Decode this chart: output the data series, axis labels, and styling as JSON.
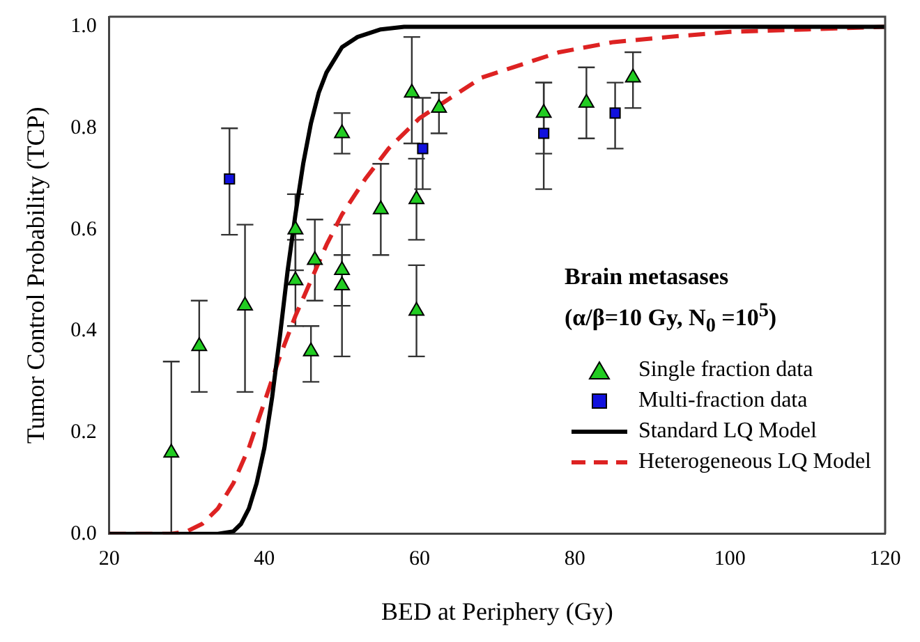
{
  "chart_data": {
    "type": "scatter",
    "xlabel": "BED at Periphery (Gy)",
    "ylabel": "Tumor Control Probability (TCP)",
    "xlim": [
      20,
      120
    ],
    "xticks": [
      20,
      40,
      60,
      80,
      100,
      120
    ],
    "ylim": [
      0,
      1.02
    ],
    "yticks": [
      {
        "value": 0,
        "label": "0.0"
      },
      {
        "value": 0.2,
        "label": "0.2"
      },
      {
        "value": 0.4,
        "label": "0.4"
      },
      {
        "value": 0.6,
        "label": "0.6"
      },
      {
        "value": 0.8,
        "label": "0.8"
      },
      {
        "value": 1,
        "label": "1.0"
      }
    ],
    "grid": false,
    "legend": "bottom right",
    "annotations": [
      "Brain metasases",
      "(α/β=10 Gy, N$_{0}$ =10$^{5}$)"
    ],
    "series": [
      {
        "name": "Single fraction data",
        "type": "scatter",
        "marker": "triangle",
        "color": "#22cc22",
        "x": [
          28,
          31.6,
          37.5,
          44,
          44,
          46,
          46.5,
          50,
          50,
          50,
          55,
          59,
          59.6,
          59.6,
          62.5,
          76,
          81.5,
          87.5
        ],
        "values": [
          0.16,
          0.37,
          0.45,
          0.6,
          0.5,
          0.36,
          0.54,
          0.79,
          0.52,
          0.49,
          0.64,
          0.87,
          0.66,
          0.44,
          0.84,
          0.83,
          0.85,
          0.9
        ],
        "errors": [
          [
            0,
            0.34
          ],
          [
            0.28,
            0.46
          ],
          [
            0.28,
            0.61
          ],
          [
            0.52,
            0.67
          ],
          [
            0.41,
            0.58
          ],
          [
            0.3,
            0.41
          ],
          [
            0.46,
            0.62
          ],
          [
            0.75,
            0.83
          ],
          [
            0.45,
            0.61
          ],
          [
            0.35,
            0.55
          ],
          [
            0.55,
            0.73
          ],
          [
            0.77,
            0.98
          ],
          [
            0.58,
            0.74
          ],
          [
            0.35,
            0.53
          ],
          [
            0.79,
            0.87
          ],
          [
            0.75,
            0.89
          ],
          [
            0.78,
            0.92
          ],
          [
            0.84,
            0.95
          ]
        ]
      },
      {
        "name": "Multi-fraction data",
        "type": "scatter",
        "marker": "square",
        "color": "#1111dd",
        "x": [
          35.5,
          60.4,
          76,
          85.2
        ],
        "values": [
          0.7,
          0.76,
          0.79,
          0.83
        ],
        "errors": [
          [
            0.59,
            0.8
          ],
          [
            0.68,
            0.86
          ],
          [
            0.68,
            0.89
          ],
          [
            0.76,
            0.89
          ]
        ]
      },
      {
        "name": "Standard LQ Model",
        "type": "line",
        "marker": "none",
        "line_style": "solid",
        "color": "#000000",
        "x": [
          20,
          34,
          36,
          37,
          38,
          39,
          40,
          41,
          42,
          43,
          44,
          45,
          46,
          47,
          48,
          50,
          52,
          55,
          58,
          62,
          70,
          120
        ],
        "values": [
          0,
          0,
          0.005,
          0.02,
          0.05,
          0.1,
          0.17,
          0.27,
          0.39,
          0.52,
          0.63,
          0.73,
          0.81,
          0.87,
          0.91,
          0.96,
          0.98,
          0.995,
          1,
          1,
          1,
          1
        ]
      },
      {
        "name": "Heterogeneous LQ Model",
        "type": "line",
        "marker": "none",
        "line_style": "dashed",
        "color": "#dd2222",
        "x": [
          20,
          28,
          30,
          32,
          34,
          36,
          38,
          40,
          42,
          44,
          46,
          48,
          50,
          53,
          56,
          60,
          64,
          68,
          72,
          78,
          85,
          92,
          100,
          110,
          120
        ],
        "values": [
          0,
          0,
          0.005,
          0.02,
          0.05,
          0.1,
          0.17,
          0.26,
          0.35,
          0.43,
          0.5,
          0.57,
          0.63,
          0.7,
          0.76,
          0.82,
          0.86,
          0.9,
          0.92,
          0.95,
          0.97,
          0.98,
          0.99,
          0.995,
          1
        ]
      }
    ]
  }
}
